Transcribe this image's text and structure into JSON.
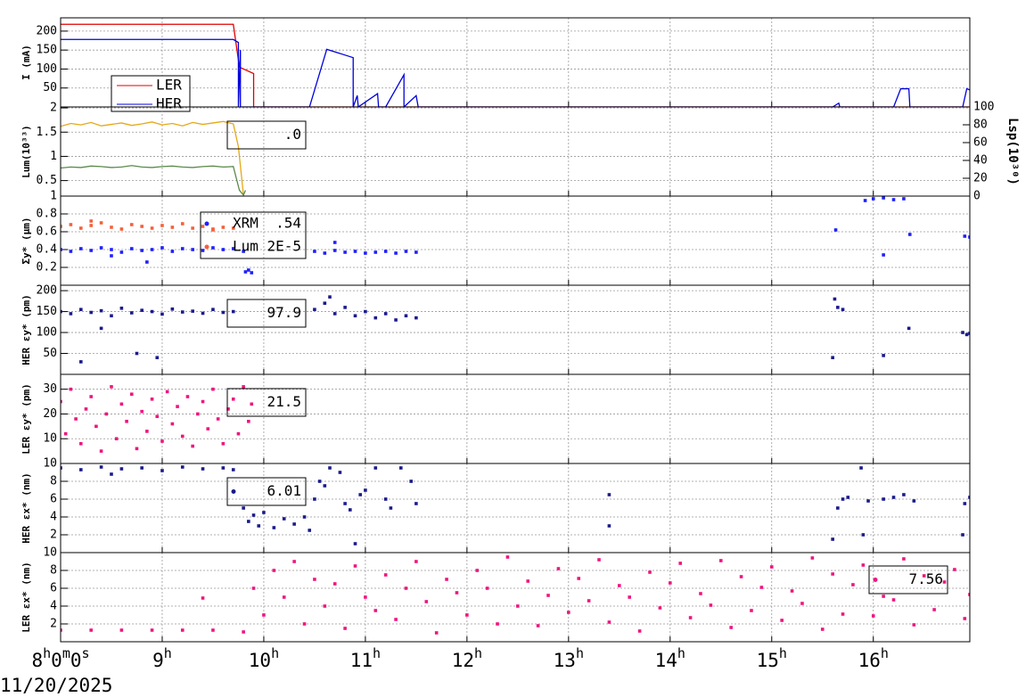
{
  "chart_data": [
    {
      "type": "line",
      "ylabel": "I (mA)",
      "xlim": [
        8,
        16.95
      ],
      "ylim": [
        0,
        235
      ],
      "yticks": [
        50,
        100,
        150,
        200
      ],
      "grid": true,
      "legend": "lower left",
      "series": [
        {
          "name": "LER",
          "color": "#e00000",
          "x": [
            8,
            9.7,
            9.76,
            9.9,
            9.9,
            16.95
          ],
          "values": [
            218,
            218,
            105,
            88,
            0,
            0
          ]
        },
        {
          "name": "HER",
          "color": "#0000dd",
          "x": [
            8,
            9.7,
            9.75,
            9.75,
            9.77,
            9.77,
            10.45,
            10.62,
            10.88,
            10.88,
            10.92,
            10.93,
            11.12,
            11.13,
            11.2,
            11.38,
            11.38,
            11.5,
            11.52,
            15.6,
            15.66,
            15.67,
            16.2,
            16.27,
            16.35,
            16.36,
            16.88,
            16.92,
            16.95
          ],
          "values": [
            178,
            178,
            170,
            0,
            150,
            0,
            0,
            152,
            130,
            0,
            30,
            0,
            35,
            0,
            0,
            85,
            0,
            30,
            0,
            0,
            10,
            0,
            0,
            48,
            48,
            0,
            0,
            48,
            45
          ]
        }
      ]
    },
    {
      "type": "line",
      "ylabel": "Lum(10³³)",
      "xlim": [
        8,
        16.95
      ],
      "ylim": [
        0.18,
        2.02
      ],
      "yticks": [
        0.5,
        1,
        1.5,
        2
      ],
      "y2label": "Lsp(10³⁰)",
      "y2lim": [
        0,
        100
      ],
      "y2ticks": [
        0,
        20,
        40,
        60,
        80,
        100
      ],
      "grid": true,
      "readouts": [
        ".0"
      ],
      "series": [
        {
          "color": "#e6a817",
          "x": [
            8,
            8.1,
            8.2,
            8.3,
            8.4,
            8.5,
            8.6,
            8.7,
            8.8,
            8.9,
            9,
            9.1,
            9.2,
            9.3,
            9.4,
            9.5,
            9.6,
            9.7,
            9.75,
            9.8
          ],
          "values": [
            1.62,
            1.68,
            1.65,
            1.7,
            1.63,
            1.66,
            1.69,
            1.64,
            1.67,
            1.71,
            1.65,
            1.68,
            1.63,
            1.7,
            1.66,
            1.69,
            1.72,
            1.67,
            1.2,
            0.2
          ]
        },
        {
          "color": "#5a8a4a",
          "x": [
            8,
            8.1,
            8.2,
            8.3,
            8.4,
            8.5,
            8.6,
            8.7,
            8.8,
            8.9,
            9,
            9.1,
            9.2,
            9.3,
            9.4,
            9.5,
            9.6,
            9.7,
            9.76,
            9.8,
            9.82
          ],
          "values": [
            0.76,
            0.78,
            0.77,
            0.8,
            0.79,
            0.77,
            0.78,
            0.81,
            0.78,
            0.77,
            0.79,
            0.8,
            0.78,
            0.77,
            0.79,
            0.8,
            0.78,
            0.79,
            0.3,
            0.2,
            0.3
          ]
        }
      ]
    },
    {
      "type": "scatter",
      "ylabel": "Σy* (μm)",
      "xlim": [
        8,
        16.95
      ],
      "ylim": [
        0,
        1
      ],
      "yticks": [
        0.2,
        0.4,
        0.6,
        0.8,
        1
      ],
      "grid": true,
      "readouts": [
        "XRM  .54",
        "Lum 2E-5"
      ],
      "series": [
        {
          "color": "#1f1fff",
          "x": [
            8,
            8.1,
            8.2,
            8.3,
            8.4,
            8.5,
            8.6,
            8.7,
            8.8,
            8.9,
            9,
            9.1,
            9.2,
            9.3,
            9.4,
            9.5,
            9.6,
            9.7,
            9.8,
            9.82,
            9.85,
            9.88,
            8.5,
            8.85,
            10.5,
            10.6,
            10.7,
            10.8,
            10.9,
            11,
            11.1,
            11.2,
            11.3,
            11.4,
            11.5,
            10.7,
            15.63,
            15.92,
            16,
            16.1,
            16.2,
            16.3,
            16.1,
            16.36,
            16.9,
            16.95
          ],
          "values": [
            0.4,
            0.38,
            0.41,
            0.39,
            0.42,
            0.4,
            0.37,
            0.41,
            0.39,
            0.4,
            0.42,
            0.38,
            0.41,
            0.4,
            0.39,
            0.42,
            0.4,
            0.41,
            0.38,
            0.15,
            0.17,
            0.14,
            0.33,
            0.26,
            0.38,
            0.36,
            0.39,
            0.37,
            0.38,
            0.36,
            0.37,
            0.38,
            0.36,
            0.38,
            0.37,
            0.48,
            0.62,
            0.95,
            0.97,
            0.98,
            0.96,
            0.97,
            0.34,
            0.57,
            0.55,
            0.54
          ]
        },
        {
          "color": "#f5603a",
          "x": [
            8,
            8.1,
            8.2,
            8.3,
            8.4,
            8.5,
            8.6,
            8.7,
            8.8,
            8.9,
            9,
            9.1,
            9.2,
            9.3,
            9.4,
            9.5,
            9.6,
            9.7,
            9.5,
            8.3
          ],
          "values": [
            0.66,
            0.68,
            0.64,
            0.67,
            0.7,
            0.65,
            0.63,
            0.68,
            0.66,
            0.64,
            0.67,
            0.65,
            0.69,
            0.64,
            0.66,
            0.63,
            0.65,
            0.64,
            0.62,
            0.72
          ]
        }
      ]
    },
    {
      "type": "scatter",
      "ylabel": "HER εy* (pm)",
      "xlim": [
        8,
        16.95
      ],
      "ylim": [
        0,
        213
      ],
      "yticks": [
        50,
        100,
        150,
        200
      ],
      "grid": true,
      "readouts": [
        "97.9"
      ],
      "series": [
        {
          "color": "#1a1a8c",
          "x": [
            8,
            8.1,
            8.2,
            8.3,
            8.4,
            8.5,
            8.6,
            8.7,
            8.8,
            8.9,
            9,
            9.1,
            9.2,
            9.3,
            9.4,
            9.5,
            9.6,
            9.7,
            8.2,
            8.75,
            8.95,
            8.4,
            10.5,
            10.6,
            10.7,
            10.8,
            10.9,
            11,
            11.1,
            11.2,
            11.3,
            11.4,
            11.5,
            10.65,
            15.62,
            15.65,
            15.7,
            15.6,
            16.35,
            16.1,
            16.88,
            16.92,
            16.95
          ],
          "values": [
            150,
            145,
            155,
            148,
            152,
            140,
            158,
            147,
            153,
            150,
            144,
            156,
            149,
            151,
            146,
            155,
            148,
            150,
            30,
            50,
            40,
            110,
            155,
            170,
            145,
            160,
            140,
            150,
            135,
            145,
            130,
            140,
            135,
            185,
            180,
            160,
            155,
            40,
            110,
            45,
            100,
            95,
            98
          ]
        }
      ]
    },
    {
      "type": "scatter",
      "ylabel": "LER εy* (pm)",
      "xlim": [
        8,
        16.95
      ],
      "ylim": [
        0,
        36
      ],
      "yticks": [
        10,
        20,
        30
      ],
      "grid": true,
      "readouts": [
        "21.5"
      ],
      "series": [
        {
          "color": "#f0147f",
          "x": [
            8,
            8.05,
            8.1,
            8.15,
            8.2,
            8.25,
            8.3,
            8.35,
            8.4,
            8.45,
            8.5,
            8.55,
            8.6,
            8.65,
            8.7,
            8.75,
            8.8,
            8.85,
            8.9,
            8.95,
            9,
            9.05,
            9.1,
            9.15,
            9.2,
            9.25,
            9.3,
            9.35,
            9.4,
            9.45,
            9.5,
            9.55,
            9.6,
            9.65,
            9.7,
            9.75,
            9.8,
            9.85,
            9.88
          ],
          "values": [
            25,
            12,
            30,
            18,
            8,
            22,
            27,
            15,
            5,
            20,
            31,
            10,
            24,
            17,
            28,
            6,
            21,
            13,
            26,
            19,
            9,
            29,
            16,
            23,
            11,
            27,
            7,
            20,
            25,
            14,
            30,
            18,
            8,
            22,
            26,
            12,
            31,
            17,
            24
          ]
        }
      ]
    },
    {
      "type": "scatter",
      "ylabel": "HER εx* (nm)",
      "xlim": [
        8,
        16.95
      ],
      "ylim": [
        0,
        10
      ],
      "yticks": [
        2,
        4,
        6,
        8,
        10
      ],
      "grid": true,
      "readouts": [
        "6.01"
      ],
      "series": [
        {
          "color": "#1a1a8c",
          "x": [
            8,
            8.2,
            8.4,
            8.6,
            8.8,
            9,
            9.2,
            9.4,
            9.6,
            9.7,
            8.5,
            9.8,
            9.85,
            9.9,
            9.95,
            10,
            10.1,
            10.2,
            10.3,
            10.4,
            10.45,
            10.5,
            10.55,
            10.6,
            10.65,
            10.75,
            10.8,
            10.85,
            10.9,
            10.95,
            11,
            11.1,
            11.2,
            11.25,
            11.35,
            11.45,
            11.5,
            13.4,
            13.4,
            15.6,
            15.65,
            15.7,
            15.75,
            15.88,
            15.9,
            15.95,
            16.1,
            16.2,
            16.3,
            16.4,
            16.88,
            16.9,
            16.95
          ],
          "values": [
            9.5,
            9.3,
            9.6,
            9.4,
            9.5,
            9.2,
            9.6,
            9.4,
            9.5,
            9.3,
            8.8,
            5,
            3.5,
            4.2,
            3,
            4.5,
            2.8,
            3.8,
            3.2,
            4,
            2.5,
            6,
            8,
            7.5,
            9.5,
            9,
            5.5,
            4.8,
            1,
            6.5,
            7,
            9.5,
            6,
            5,
            9.5,
            8,
            5.5,
            6.5,
            3,
            1.5,
            5,
            6,
            6.2,
            9.5,
            2,
            5.8,
            6,
            6.2,
            6.5,
            5.8,
            2,
            5.5,
            6.2
          ]
        }
      ]
    },
    {
      "type": "scatter",
      "ylabel": "LER εx* (nm)",
      "xlim": [
        8,
        16.95
      ],
      "ylim": [
        0,
        10
      ],
      "yticks": [
        2,
        4,
        6,
        8,
        10
      ],
      "grid": true,
      "readouts": [
        "7.56"
      ],
      "xticks": [
        {
          "value": 8,
          "label": "8h0m0s"
        },
        {
          "value": 9,
          "label": "9h"
        },
        {
          "value": 10,
          "label": "10h"
        },
        {
          "value": 11,
          "label": "11h"
        },
        {
          "value": 12,
          "label": "12h"
        },
        {
          "value": 13,
          "label": "13h"
        },
        {
          "value": 14,
          "label": "14h"
        },
        {
          "value": 15,
          "label": "15h"
        },
        {
          "value": 16,
          "label": "16h"
        }
      ],
      "date_label": "11/20/2025",
      "series": [
        {
          "color": "#f0147f",
          "x": [
            8,
            8.3,
            8.6,
            8.9,
            9.2,
            9.5,
            9.8,
            9.4,
            9.9,
            10,
            10.1,
            10.2,
            10.3,
            10.4,
            10.5,
            10.6,
            10.7,
            10.8,
            10.9,
            11,
            11.1,
            11.2,
            11.3,
            11.4,
            11.5,
            11.6,
            11.7,
            11.8,
            11.9,
            12,
            12.1,
            12.2,
            12.3,
            12.4,
            12.5,
            12.6,
            12.7,
            12.8,
            12.9,
            13,
            13.1,
            13.2,
            13.3,
            13.4,
            13.5,
            13.6,
            13.7,
            13.8,
            13.9,
            14,
            14.1,
            14.2,
            14.3,
            14.4,
            14.5,
            14.6,
            14.7,
            14.8,
            14.9,
            15,
            15.1,
            15.2,
            15.3,
            15.4,
            15.5,
            15.6,
            15.7,
            15.8,
            15.9,
            16,
            16.1,
            16.2,
            16.3,
            16.4,
            16.5,
            16.6,
            16.7,
            16.8,
            16.9,
            16.95
          ],
          "values": [
            1.3,
            1.3,
            1.3,
            1.3,
            1.3,
            1.3,
            1.1,
            4.9,
            6,
            3,
            8,
            5,
            9,
            2,
            7,
            4,
            6.5,
            1.5,
            8.5,
            5,
            3.5,
            7.5,
            2.5,
            6,
            9,
            4.5,
            1,
            7,
            5.5,
            3,
            8,
            6,
            2,
            9.5,
            4,
            6.8,
            1.8,
            5.2,
            8.2,
            3.3,
            7.1,
            4.6,
            9.2,
            2.2,
            6.3,
            5,
            1.2,
            7.8,
            3.8,
            6.6,
            8.8,
            2.7,
            5.4,
            4.1,
            9.1,
            1.6,
            7.3,
            3.5,
            6.1,
            8.4,
            2.4,
            5.7,
            4.3,
            9.4,
            1.4,
            7.6,
            3.1,
            6.4,
            8.6,
            2.9,
            5.1,
            4.7,
            9.3,
            1.9,
            7.4,
            3.6,
            6.7,
            8.1,
            2.6,
            5.3
          ]
        }
      ]
    }
  ]
}
